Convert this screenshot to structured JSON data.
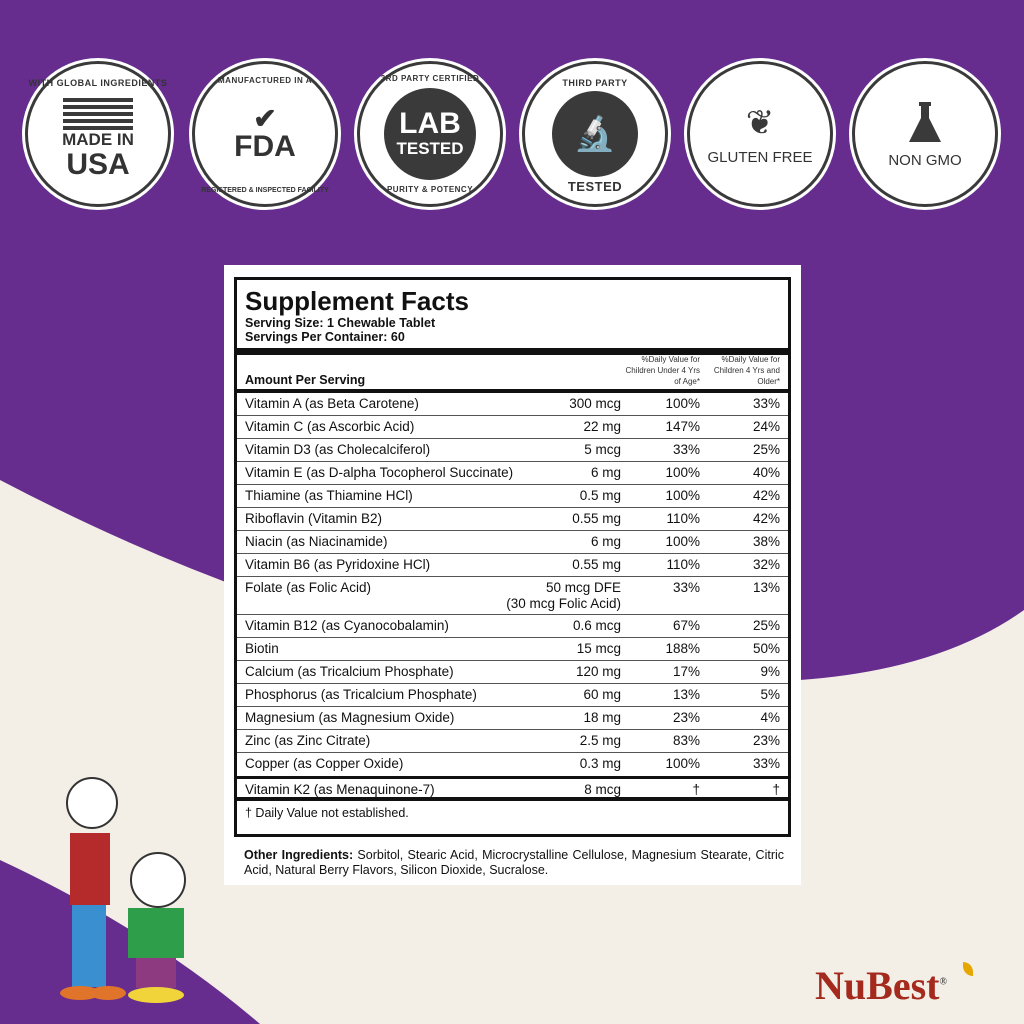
{
  "badges": [
    {
      "ring": "WITH GLOBAL INGREDIENTS",
      "main": "MADE IN",
      "big": "USA",
      "icon": "us-flag-icon"
    },
    {
      "ring": "MANUFACTURED IN A",
      "main": "FDA",
      "ring2": "REGISTERED & INSPECTED FACILITY",
      "icon": "checkmark-icon"
    },
    {
      "ring": "3RD PARTY CERTIFIED",
      "main": "LAB",
      "big": "TESTED",
      "ring2": "PURITY & POTENCY"
    },
    {
      "ring": "THIRD PARTY",
      "ring2": "TESTED",
      "icon": "microscope-icon"
    },
    {
      "main": "GLUTEN FREE",
      "icon": "wheat-icon"
    },
    {
      "main": "NON GMO",
      "icon": "flask-icon"
    }
  ],
  "label": {
    "title": "Supplement Facts",
    "serving_size": "Serving Size: 1 Chewable Tablet",
    "servings_per_container": "Servings Per Container: 60",
    "amount_header": "Amount Per Serving",
    "dv_under4": "%Daily Value for Children Under 4 Yrs of Age*",
    "dv_4plus": "%Daily Value for Children 4 Yrs and Older*",
    "rows": [
      {
        "name": "Vitamin A (as Beta Carotene)",
        "amount": "300 mcg",
        "dv1": "100%",
        "dv2": "33%"
      },
      {
        "name": "Vitamin C (as Ascorbic Acid)",
        "amount": "22 mg",
        "dv1": "147%",
        "dv2": "24%"
      },
      {
        "name": "Vitamin D3 (as Cholecalciferol)",
        "amount": "5 mcg",
        "dv1": "33%",
        "dv2": "25%"
      },
      {
        "name": "Vitamin E (as D-alpha Tocopherol Succinate)",
        "amount": "6 mg",
        "dv1": "100%",
        "dv2": "40%"
      },
      {
        "name": "Thiamine (as Thiamine HCl)",
        "amount": "0.5 mg",
        "dv1": "100%",
        "dv2": "42%"
      },
      {
        "name": "Riboflavin (Vitamin B2)",
        "amount": "0.55 mg",
        "dv1": "110%",
        "dv2": "42%"
      },
      {
        "name": "Niacin (as Niacinamide)",
        "amount": "6 mg",
        "dv1": "100%",
        "dv2": "38%"
      },
      {
        "name": "Vitamin B6 (as Pyridoxine HCl)",
        "amount": "0.55 mg",
        "dv1": "110%",
        "dv2": "32%"
      },
      {
        "name": "Folate (as Folic Acid)",
        "amount": "50 mcg DFE",
        "amount2": "(30 mcg Folic Acid)",
        "dv1": "33%",
        "dv2": "13%"
      },
      {
        "name": "Vitamin B12 (as Cyanocobalamin)",
        "amount": "0.6 mcg",
        "dv1": "67%",
        "dv2": "25%"
      },
      {
        "name": "Biotin",
        "amount": "15 mcg",
        "dv1": "188%",
        "dv2": "50%"
      },
      {
        "name": "Calcium (as Tricalcium Phosphate)",
        "amount": "120 mg",
        "dv1": "17%",
        "dv2": "9%"
      },
      {
        "name": "Phosphorus (as Tricalcium Phosphate)",
        "amount": "60 mg",
        "dv1": "13%",
        "dv2": "5%"
      },
      {
        "name": "Magnesium (as Magnesium Oxide)",
        "amount": "18 mg",
        "dv1": "23%",
        "dv2": "4%"
      },
      {
        "name": "Zinc (as Zinc Citrate)",
        "amount": "2.5 mg",
        "dv1": "83%",
        "dv2": "23%"
      },
      {
        "name": "Copper (as Copper Oxide)",
        "amount": "0.3 mg",
        "dv1": "100%",
        "dv2": "33%"
      }
    ],
    "k2": {
      "name": "Vitamin K2 (as Menaquinone-7)",
      "amount": "8 mcg",
      "dv1": "†",
      "dv2": "†"
    },
    "footnote": "† Daily Value not established.",
    "other_label": "Other Ingredients:",
    "other_text": " Sorbitol, Stearic Acid, Microcrystalline Cellulose, Magnesium Stearate, Citric Acid, Natural Berry Flavors, Silicon Dioxide, Sucralose."
  },
  "brand": {
    "name": "NuBest",
    "mark": "®"
  },
  "colors": {
    "purple": "#662d8f",
    "cream": "#f3efe7",
    "brand_red": "#a52a1e"
  }
}
